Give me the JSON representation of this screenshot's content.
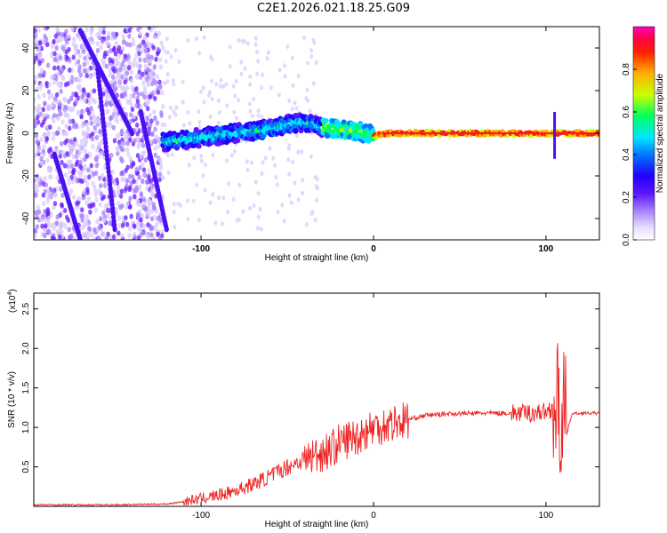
{
  "title": "C2E1.2026.021.18.25.G09",
  "chart_data": [
    {
      "type": "heatmap",
      "title": "C2E1.2026.021.18.25.G09",
      "xlabel": "Height of straight line (km)",
      "ylabel": "Frequency (Hz)",
      "xlim": [
        -197,
        131
      ],
      "ylim": [
        -50,
        50
      ],
      "xticks": [
        -100,
        0,
        100
      ],
      "yticks": [
        -40,
        -20,
        0,
        20,
        40
      ],
      "description_ridge": {
        "x": [
          -122,
          -110,
          -100,
          -90,
          -80,
          -70,
          -60,
          -50,
          -40,
          -30,
          -20,
          -10,
          0,
          10,
          50,
          100,
          131
        ],
        "y": [
          -4,
          -3,
          -2,
          -1,
          0,
          1,
          2,
          4,
          5,
          3,
          2,
          1,
          -1,
          0,
          0,
          0,
          0
        ]
      },
      "colorbar": {
        "label": "Normalized spectral amplitude",
        "range": [
          0.0,
          1.0
        ],
        "ticks": [
          0.0,
          0.2,
          0.4,
          0.6,
          0.8
        ],
        "colormap": [
          "#ffffff",
          "#c9b3ff",
          "#7f3dff",
          "#2a00ff",
          "#0066ff",
          "#00e0ff",
          "#00ff55",
          "#b6ff00",
          "#ffd000",
          "#ff3300",
          "#ff0033",
          "#ff00aa"
        ]
      }
    },
    {
      "type": "line",
      "xlabel": "Height of straight line (km)",
      "ylabel": "SNR (10 * v/v)",
      "scale_label": "(x10",
      "scale_exp": "4",
      "xlim": [
        -197,
        131
      ],
      "ylim": [
        0,
        2.7
      ],
      "xticks": [
        -100,
        0,
        100
      ],
      "yticks": [
        0.5,
        1.0,
        1.5,
        2.0,
        2.5
      ],
      "ytick_labels": [
        "0.5",
        "1.0",
        "1.5",
        "2.0",
        "2.5"
      ],
      "series": [
        {
          "name": "SNR",
          "color": "#ee2222",
          "x": [
            -197,
            -150,
            -120,
            -110,
            -100,
            -90,
            -80,
            -70,
            -60,
            -50,
            -40,
            -30,
            -25,
            -20,
            -15,
            -10,
            -5,
            0,
            10,
            20,
            30,
            40,
            60,
            80,
            90,
            100,
            104,
            106,
            108,
            110,
            112,
            115,
            120,
            131
          ],
          "y": [
            0.02,
            0.02,
            0.03,
            0.06,
            0.1,
            0.14,
            0.2,
            0.28,
            0.38,
            0.5,
            0.6,
            0.68,
            0.72,
            0.8,
            0.85,
            0.88,
            0.95,
            1.0,
            1.05,
            1.1,
            1.15,
            1.17,
            1.18,
            1.18,
            1.18,
            1.2,
            1.25,
            1.3,
            1.0,
            1.4,
            0.9,
            1.17,
            1.18,
            1.18
          ]
        }
      ]
    }
  ]
}
